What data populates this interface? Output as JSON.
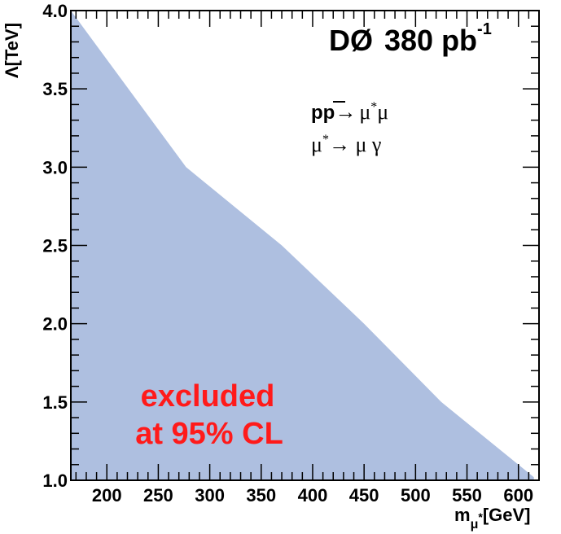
{
  "chart_data": {
    "type": "area",
    "x": [
      165,
      277,
      370,
      450,
      525,
      615
    ],
    "y": [
      4.0,
      3.0,
      2.5,
      2.0,
      1.5,
      1.02
    ],
    "xlim": [
      165,
      620
    ],
    "ylim": [
      1.0,
      4.0
    ],
    "xticks": [
      "200",
      "250",
      "300",
      "350",
      "400",
      "450",
      "500",
      "550",
      "600"
    ],
    "yticks": [
      "1.0",
      "1.5",
      "2.0",
      "2.5",
      "3.0",
      "3.5",
      "4.0"
    ],
    "xlabel": {
      "main": "m",
      "sub": "μ",
      "sup": "*",
      "unit": "[GeV]"
    },
    "ylabel": "Λ[TeV]",
    "fill_color": "#aebfe0",
    "annotation_color": "#ff1a1a",
    "grid": false
  },
  "header": {
    "experiment": "DØ",
    "luminosity": "380 pb",
    "lumi_exponent": "-1"
  },
  "process": {
    "line1_beams": "pp",
    "line1_arrow": "→",
    "line1_mu": "μ",
    "line1_star": "*",
    "line1_mu2": "μ",
    "line2_mu": "μ",
    "line2_star": "*",
    "line2_rest": "→ μ γ"
  },
  "excluded": {
    "line1": "excluded",
    "line2": "at 95% CL"
  }
}
